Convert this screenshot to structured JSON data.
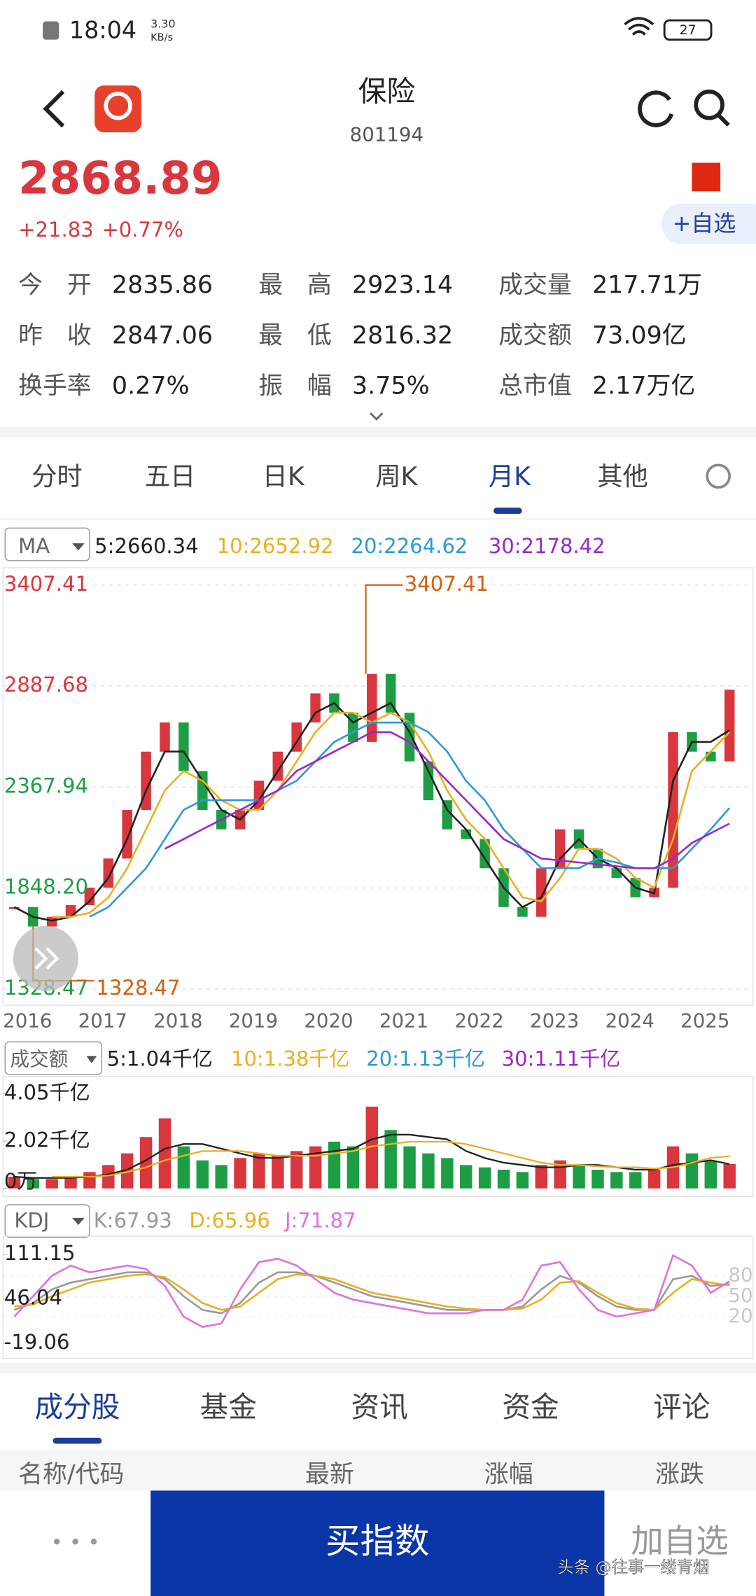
{
  "status_bar": {
    "time": "18:04",
    "speed": "3.30",
    "speed_unit": "KB/s",
    "battery": "27"
  },
  "header": {
    "title": "保险",
    "code": "801194"
  },
  "quote": {
    "price": "2868.89",
    "change": "+21.83",
    "change_pct": "+0.77%",
    "watch_button": "+自选"
  },
  "stats": [
    [
      {
        "label": "今　开",
        "value": "2835.86"
      },
      {
        "label": "最　高",
        "value": "2923.14"
      },
      {
        "label": "成交量",
        "value": "217.71万"
      }
    ],
    [
      {
        "label": "昨　收",
        "value": "2847.06"
      },
      {
        "label": "最　低",
        "value": "2816.32"
      },
      {
        "label": "成交额",
        "value": "73.09亿"
      }
    ],
    [
      {
        "label": "换手率",
        "value": "0.27%"
      },
      {
        "label": "振　幅",
        "value": "3.75%"
      },
      {
        "label": "总市值",
        "value": "2.17万亿"
      }
    ]
  ],
  "period_tabs": {
    "items": [
      "分时",
      "五日",
      "日K",
      "周K",
      "月K",
      "其他"
    ],
    "active": 4
  },
  "main_chart": {
    "type": "candlestick",
    "indicator": "MA",
    "legend": [
      {
        "label": "5:2660.34",
        "color": "#222222"
      },
      {
        "label": "10:2652.92",
        "color": "#e8b020"
      },
      {
        "label": "20:2264.62",
        "color": "#2a9ad6"
      },
      {
        "label": "30:2178.42",
        "color": "#9b27c9"
      }
    ],
    "ylim": [
      1328.47,
      3407.41
    ],
    "yticks": [
      3407.41,
      2887.68,
      2367.94,
      {
        "value": 1848.2,
        "label": "1848.20"
      },
      1328.47
    ],
    "ytick_colors": [
      "#d9363e",
      "#d9363e",
      "#1e9e44",
      "#1e9e44",
      "#1e9e44"
    ],
    "years": [
      "2016",
      "2017",
      "2018",
      "2019",
      "2020",
      "2021",
      "2022",
      "2023",
      "2024",
      "2025"
    ],
    "up_color": "#d9363e",
    "down_color": "#1e9e44",
    "max_label": 3407.41,
    "min_label": 1328.47,
    "close": [
      1750,
      1650,
      1700,
      1760,
      1850,
      2000,
      2250,
      2550,
      2700,
      2450,
      2250,
      2150,
      2250,
      2400,
      2550,
      2700,
      2850,
      2750,
      2600,
      2950,
      2750,
      2500,
      2300,
      2150,
      2100,
      1950,
      1750,
      1700,
      1950,
      2150,
      2050,
      1950,
      1900,
      1800,
      1850,
      2650,
      2550,
      2500,
      2868.89
    ],
    "ma": [
      {
        "color": "#222222",
        "values": [
          1750,
          1700,
          1680,
          1700,
          1780,
          1900,
          2100,
          2350,
          2550,
          2550,
          2400,
          2250,
          2200,
          2300,
          2450,
          2600,
          2750,
          2800,
          2700,
          2750,
          2800,
          2650,
          2450,
          2250,
          2150,
          2000,
          1850,
          1750,
          1800,
          2000,
          2100,
          2000,
          1950,
          1850,
          1820,
          2400,
          2600,
          2600,
          2660
        ]
      },
      {
        "color": "#e8b020",
        "values": [
          null,
          null,
          1700,
          1700,
          1720,
          1800,
          1950,
          2150,
          2350,
          2450,
          2400,
          2300,
          2250,
          2250,
          2350,
          2500,
          2650,
          2750,
          2750,
          2700,
          2750,
          2700,
          2550,
          2350,
          2200,
          2100,
          1950,
          1800,
          1780,
          1900,
          2050,
          2050,
          2000,
          1900,
          1850,
          2100,
          2450,
          2550,
          2650
        ]
      },
      {
        "color": "#2a9ad6",
        "values": [
          null,
          null,
          null,
          null,
          1700,
          1750,
          1850,
          1950,
          2100,
          2250,
          2300,
          2300,
          2300,
          2300,
          2350,
          2400,
          2500,
          2600,
          2650,
          2700,
          2700,
          2700,
          2650,
          2550,
          2400,
          2300,
          2150,
          2050,
          1950,
          1950,
          1950,
          2000,
          1980,
          1950,
          1950,
          1950,
          2050,
          2150,
          2260
        ]
      },
      {
        "color": "#9b27c9",
        "values": [
          null,
          null,
          null,
          null,
          null,
          null,
          null,
          null,
          2050,
          2100,
          2150,
          2200,
          2250,
          2300,
          2350,
          2450,
          2500,
          2550,
          2600,
          2650,
          2650,
          2600,
          2500,
          2400,
          2300,
          2200,
          2100,
          2050,
          2000,
          1990,
          1980,
          1970,
          1960,
          1950,
          1950,
          2000,
          2080,
          2130,
          2180
        ]
      }
    ]
  },
  "volume_chart": {
    "type": "bar",
    "indicator": "成交额",
    "legend": [
      {
        "label": "5:1.04千亿",
        "color": "#222222"
      },
      {
        "label": "10:1.38千亿",
        "color": "#e8b020"
      },
      {
        "label": "20:1.13千亿",
        "color": "#2a9ad6"
      },
      {
        "label": "30:1.11千亿",
        "color": "#9b27c9"
      }
    ],
    "ylim": [
      0,
      4.05
    ],
    "yticks": [
      {
        "value": 4.05,
        "label": "4.05千亿"
      },
      {
        "value": 2.02,
        "label": "2.02千亿"
      },
      {
        "value": 0,
        "label": "0万"
      }
    ],
    "values": [
      0.5,
      0.4,
      0.4,
      0.5,
      0.7,
      1.0,
      1.5,
      2.2,
      3.0,
      1.8,
      1.2,
      1.0,
      1.3,
      1.5,
      1.4,
      1.6,
      1.8,
      2.0,
      1.8,
      3.5,
      2.5,
      1.8,
      1.5,
      1.3,
      1.0,
      0.9,
      0.8,
      0.7,
      1.0,
      1.2,
      1.0,
      0.8,
      0.7,
      0.7,
      0.8,
      1.8,
      1.5,
      1.2,
      1.04
    ],
    "ma": [
      {
        "color": "#222222",
        "values": [
          0.5,
          0.45,
          0.45,
          0.45,
          0.5,
          0.6,
          0.8,
          1.2,
          1.7,
          1.9,
          1.9,
          1.7,
          1.5,
          1.3,
          1.3,
          1.4,
          1.5,
          1.6,
          1.7,
          2.1,
          2.3,
          2.3,
          2.2,
          2.1,
          1.6,
          1.3,
          1.1,
          1.0,
          0.9,
          0.9,
          1.0,
          1.0,
          0.9,
          0.8,
          0.8,
          1.0,
          1.1,
          1.2,
          1.04
        ]
      },
      {
        "color": "#e8b020",
        "values": [
          null,
          null,
          0.5,
          0.5,
          0.5,
          0.55,
          0.7,
          0.9,
          1.2,
          1.4,
          1.6,
          1.6,
          1.6,
          1.5,
          1.4,
          1.4,
          1.4,
          1.5,
          1.6,
          1.8,
          1.9,
          2.0,
          2.0,
          2.0,
          1.9,
          1.7,
          1.5,
          1.3,
          1.1,
          1.0,
          1.0,
          0.95,
          0.9,
          0.9,
          0.85,
          0.9,
          1.1,
          1.3,
          1.38
        ]
      }
    ]
  },
  "kdj_chart": {
    "type": "line",
    "indicator": "KDJ",
    "ylim": [
      -41,
      138
    ],
    "yticks": [
      111.15,
      46.04,
      -19.06
    ],
    "right_ticks": [
      80,
      50,
      20
    ],
    "series": [
      {
        "name": "K:67.93",
        "color": "#999999",
        "values": [
          30,
          40,
          60,
          70,
          75,
          80,
          85,
          85,
          75,
          50,
          30,
          25,
          40,
          70,
          85,
          85,
          80,
          70,
          60,
          50,
          45,
          40,
          35,
          30,
          30,
          30,
          30,
          35,
          60,
          80,
          70,
          50,
          35,
          30,
          30,
          75,
          80,
          65,
          67.93
        ]
      },
      {
        "name": "D:65.96",
        "color": "#e8b020",
        "values": [
          35,
          38,
          50,
          60,
          70,
          75,
          80,
          82,
          78,
          60,
          40,
          30,
          35,
          55,
          75,
          82,
          80,
          75,
          65,
          55,
          50,
          45,
          40,
          35,
          32,
          30,
          30,
          32,
          45,
          70,
          72,
          55,
          40,
          32,
          30,
          55,
          75,
          70,
          65.96
        ]
      },
      {
        "name": "J:71.87",
        "color": "#e070e0",
        "values": [
          20,
          50,
          80,
          95,
          85,
          90,
          95,
          90,
          65,
          20,
          5,
          10,
          60,
          100,
          105,
          95,
          75,
          55,
          45,
          40,
          35,
          30,
          25,
          25,
          25,
          30,
          30,
          45,
          95,
          100,
          60,
          30,
          20,
          25,
          30,
          110,
          95,
          55,
          71.87
        ]
      }
    ]
  },
  "bottom_tabs": {
    "items": [
      "成分股",
      "基金",
      "资讯",
      "资金",
      "评论"
    ],
    "active": 0
  },
  "table_header": [
    "名称/代码",
    "最新",
    "涨幅",
    "涨跌"
  ],
  "action_bar": {
    "more": "• • •",
    "buy": "买指数",
    "add": "加自选"
  },
  "watermark": "头条 @往事一缕青烟"
}
